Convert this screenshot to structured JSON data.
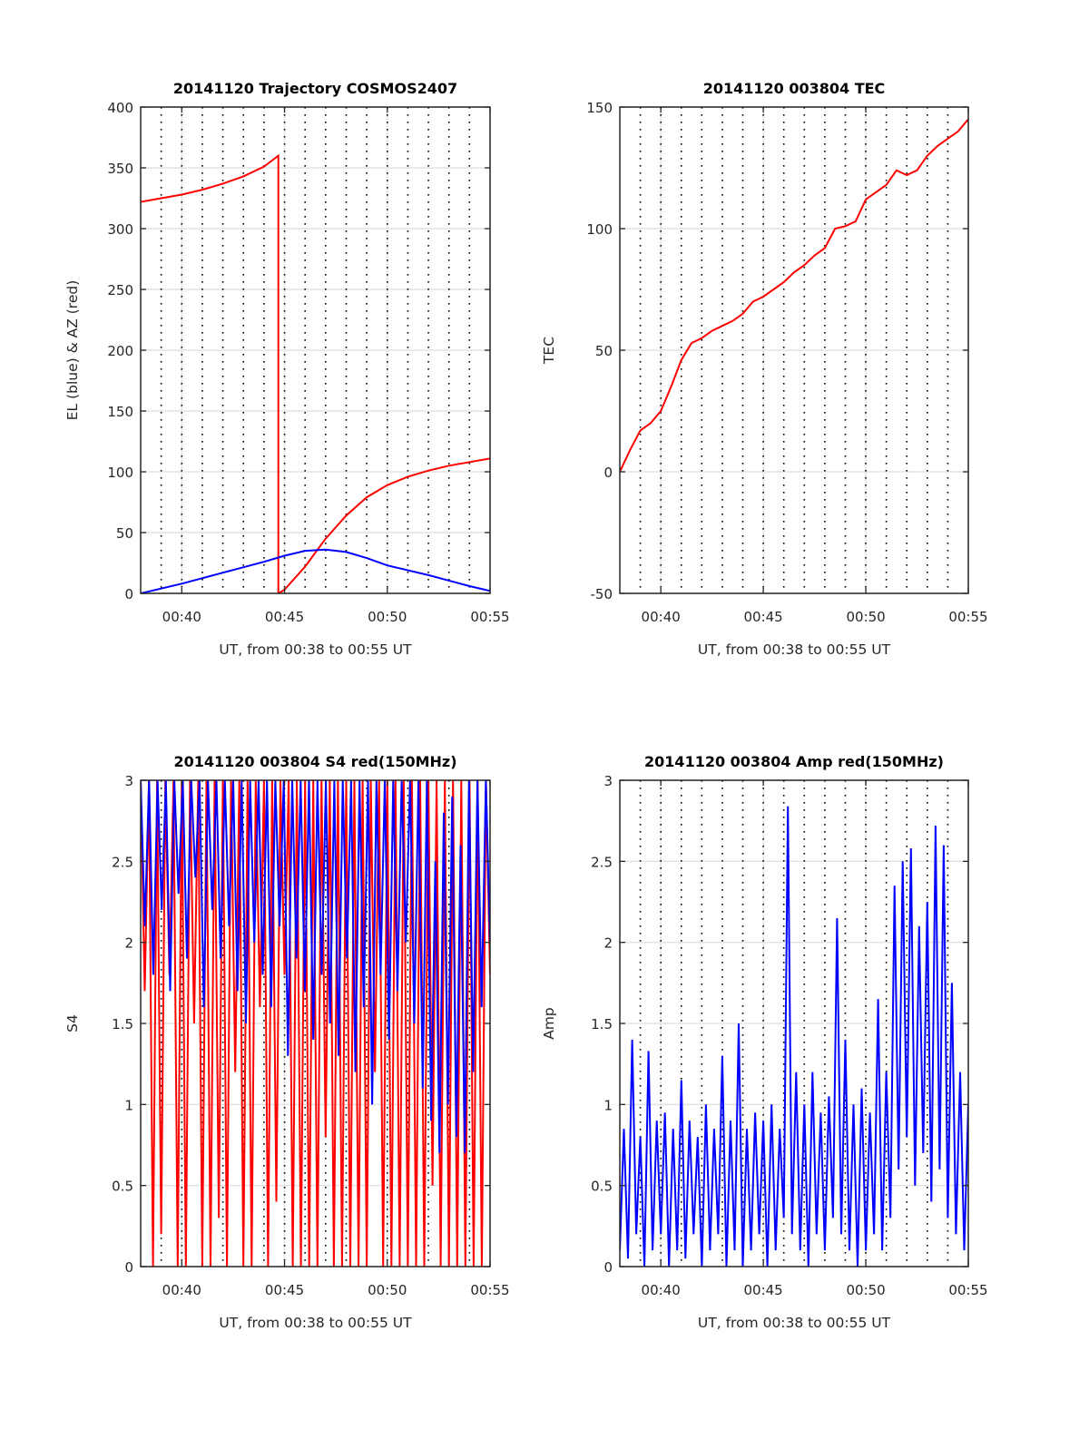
{
  "chart_data": [
    {
      "type": "line",
      "title": "20141120 Trajectory COSMOS2407",
      "xlabel": "UT, from 00:38 to 00:55 UT",
      "ylabel": "EL (blue) & AZ (red)",
      "xlim_min": [
        38,
        55
      ],
      "xticks_min": [
        40,
        45,
        50,
        55
      ],
      "xtick_labels": [
        "00:40",
        "00:45",
        "00:50",
        "00:55"
      ],
      "ylim": [
        0,
        400
      ],
      "yticks": [
        0,
        50,
        100,
        150,
        200,
        250,
        300,
        350,
        400
      ],
      "grid": true,
      "series": [
        {
          "name": "AZ",
          "color": "#ff0000",
          "x": [
            38,
            39,
            40,
            41,
            42,
            43,
            44,
            44.7,
            44.7,
            45,
            46,
            47,
            48,
            49,
            50,
            51,
            52,
            53,
            54,
            55
          ],
          "y": [
            322,
            325,
            328,
            332,
            337,
            343,
            351,
            360,
            0,
            3,
            22,
            45,
            64,
            79,
            89,
            96,
            101,
            105,
            108,
            111
          ]
        },
        {
          "name": "EL",
          "color": "#0000ff",
          "x": [
            38,
            40,
            42,
            44,
            45,
            46,
            47,
            48,
            49,
            50,
            52,
            54,
            55
          ],
          "y": [
            0,
            8,
            17,
            26,
            31,
            35,
            36,
            34,
            29,
            23,
            15,
            6,
            2
          ]
        }
      ]
    },
    {
      "type": "line",
      "title": "20141120 003804 TEC",
      "xlabel": "UT, from 00:38 to 00:55 UT",
      "ylabel": "TEC",
      "xlim_min": [
        38,
        55
      ],
      "xticks_min": [
        40,
        45,
        50,
        55
      ],
      "xtick_labels": [
        "00:40",
        "00:45",
        "00:50",
        "00:55"
      ],
      "ylim": [
        -50,
        150
      ],
      "yticks": [
        -50,
        0,
        50,
        100,
        150
      ],
      "grid": true,
      "series": [
        {
          "name": "TEC",
          "color": "#ff0000",
          "x": [
            38,
            38.5,
            39,
            39.5,
            40,
            40.5,
            41,
            41.5,
            42,
            42.5,
            43,
            43.5,
            44,
            44.5,
            45,
            45.5,
            46,
            46.5,
            47,
            47.5,
            48,
            48.5,
            49,
            49.5,
            50,
            50.5,
            51,
            51.5,
            52,
            52.5,
            53,
            53.5,
            54,
            54.5,
            55
          ],
          "y": [
            0,
            9,
            17,
            20,
            25,
            35,
            46,
            53,
            55,
            58,
            60,
            62,
            65,
            70,
            72,
            75,
            78,
            82,
            85,
            89,
            92,
            100,
            101,
            103,
            112,
            115,
            118,
            124,
            122,
            124,
            130,
            134,
            137,
            140,
            145
          ]
        }
      ]
    },
    {
      "type": "line",
      "title": "20141120 003804 S4 red(150MHz)",
      "xlabel": "UT, from 00:38 to 00:55 UT",
      "ylabel": "S4",
      "xlim_min": [
        38,
        55
      ],
      "xticks_min": [
        40,
        45,
        50,
        55
      ],
      "xtick_labels": [
        "00:40",
        "00:45",
        "00:50",
        "00:55"
      ],
      "ylim": [
        0,
        3
      ],
      "yticks": [
        0,
        0.5,
        1,
        1.5,
        2,
        2.5,
        3
      ],
      "ytick_labels": [
        "0",
        "0.5",
        "1",
        "1.5",
        "2",
        "2.5",
        "3"
      ],
      "grid": true,
      "series": [
        {
          "name": "S4 red",
          "color": "#ff0000",
          "y": [
            3,
            1.7,
            3,
            0,
            3,
            0.2,
            3,
            1.8,
            3,
            0,
            3,
            0,
            3,
            1.5,
            3,
            0,
            3,
            0,
            3,
            0.3,
            3,
            0,
            3,
            1.2,
            3,
            0,
            3,
            0,
            3,
            1.6,
            3,
            0,
            3,
            0.4,
            3,
            1.8,
            3,
            0,
            3,
            0,
            3,
            0,
            3,
            0,
            3,
            0.8,
            3,
            0,
            3,
            0,
            3,
            0,
            3,
            0,
            3,
            0,
            3,
            1.2,
            3,
            0,
            3,
            0,
            3,
            0,
            3,
            0,
            3,
            0,
            3,
            0,
            3,
            0.5,
            3,
            0,
            3,
            0,
            3,
            0,
            3,
            0,
            3,
            0,
            3,
            0,
            3,
            1.8
          ]
        },
        {
          "name": "S4 blue",
          "color": "#0000ff",
          "y": [
            3,
            2.1,
            3,
            1.8,
            3,
            2.2,
            3,
            1.7,
            3,
            2.3,
            3,
            1.9,
            3,
            2.4,
            3,
            1.6,
            3,
            2.2,
            3,
            1.9,
            3,
            2.1,
            3,
            1.7,
            3,
            1.5,
            3,
            2.0,
            3,
            1.8,
            3,
            1.6,
            3,
            2.1,
            3,
            1.3,
            3,
            1.9,
            3,
            1.7,
            3,
            1.4,
            3,
            1.8,
            3,
            1.5,
            3,
            1.3,
            3,
            1.9,
            3,
            1.2,
            3,
            1.6,
            3,
            1.0,
            3,
            1.8,
            3,
            1.4,
            3,
            1.7,
            3,
            2.0,
            3,
            1.5,
            3,
            1.1,
            3,
            0.9,
            2.5,
            0.7,
            2.8,
            1.0,
            2.9,
            0.8,
            2.6,
            0.7,
            3,
            1.2,
            3,
            1.6,
            3,
            2.0
          ]
        }
      ]
    },
    {
      "type": "line",
      "title": "20141120 003804 Amp red(150MHz)",
      "xlabel": "UT, from 00:38 to 00:55 UT",
      "ylabel": "Amp",
      "xlim_min": [
        38,
        55
      ],
      "xticks_min": [
        40,
        45,
        50,
        55
      ],
      "xtick_labels": [
        "00:40",
        "00:45",
        "00:50",
        "00:55"
      ],
      "ylim": [
        0,
        3
      ],
      "yticks": [
        0,
        0.5,
        1,
        1.5,
        2,
        2.5,
        3
      ],
      "ytick_labels": [
        "0",
        "0.5",
        "1",
        "1.5",
        "2",
        "2.5",
        "3"
      ],
      "grid": true,
      "series": [
        {
          "name": "Amp",
          "color": "#0000ff",
          "y": [
            0.1,
            0.85,
            0.05,
            1.4,
            0.2,
            0.8,
            0,
            1.33,
            0.1,
            0.9,
            0.2,
            0.95,
            0,
            0.85,
            0.1,
            1.15,
            0.05,
            0.9,
            0.2,
            0.8,
            0,
            1.0,
            0.1,
            0.85,
            0.2,
            1.3,
            0,
            0.9,
            0.1,
            1.5,
            0,
            0.85,
            0.1,
            0.95,
            0.2,
            0.9,
            0,
            1.0,
            0.1,
            0.85,
            0.3,
            2.84,
            0.2,
            1.2,
            0.1,
            1.0,
            0,
            1.2,
            0.2,
            0.95,
            0.1,
            1.05,
            0.3,
            2.15,
            0.2,
            1.4,
            0.1,
            1.0,
            0,
            1.1,
            0.1,
            0.95,
            0.2,
            1.65,
            0.1,
            1.2,
            0.3,
            2.35,
            0.6,
            2.5,
            0.8,
            2.58,
            0.5,
            2.1,
            0.7,
            2.25,
            0.4,
            2.72,
            0.6,
            2.6,
            0.3,
            1.75,
            0.2,
            1.2,
            0.1,
            1.0
          ]
        }
      ]
    }
  ]
}
